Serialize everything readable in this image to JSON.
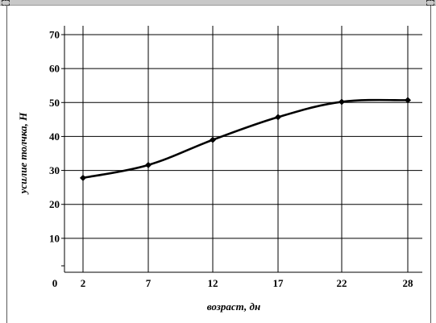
{
  "chart_data": {
    "type": "line",
    "title": "",
    "xlabel": "возраст, дн",
    "ylabel": "усилие толчка, Н",
    "x_ticks": [
      "2",
      "7",
      "12",
      "17",
      "22",
      "28"
    ],
    "y_ticks": [
      "10",
      "20",
      "30",
      "40",
      "50",
      "60",
      "70"
    ],
    "origin_label": "0",
    "ylim": [
      0,
      70
    ],
    "grid": true,
    "series": [
      {
        "x": [
          2,
          7,
          12,
          17,
          22,
          28
        ],
        "y": [
          27.8,
          31.6,
          39.0,
          45.7,
          50.2,
          50.7
        ],
        "color": "#000000",
        "marker": "diamond"
      }
    ]
  },
  "colors": {
    "line": "#000000",
    "grid": "#000000",
    "topbar": "#c8c8c8"
  }
}
